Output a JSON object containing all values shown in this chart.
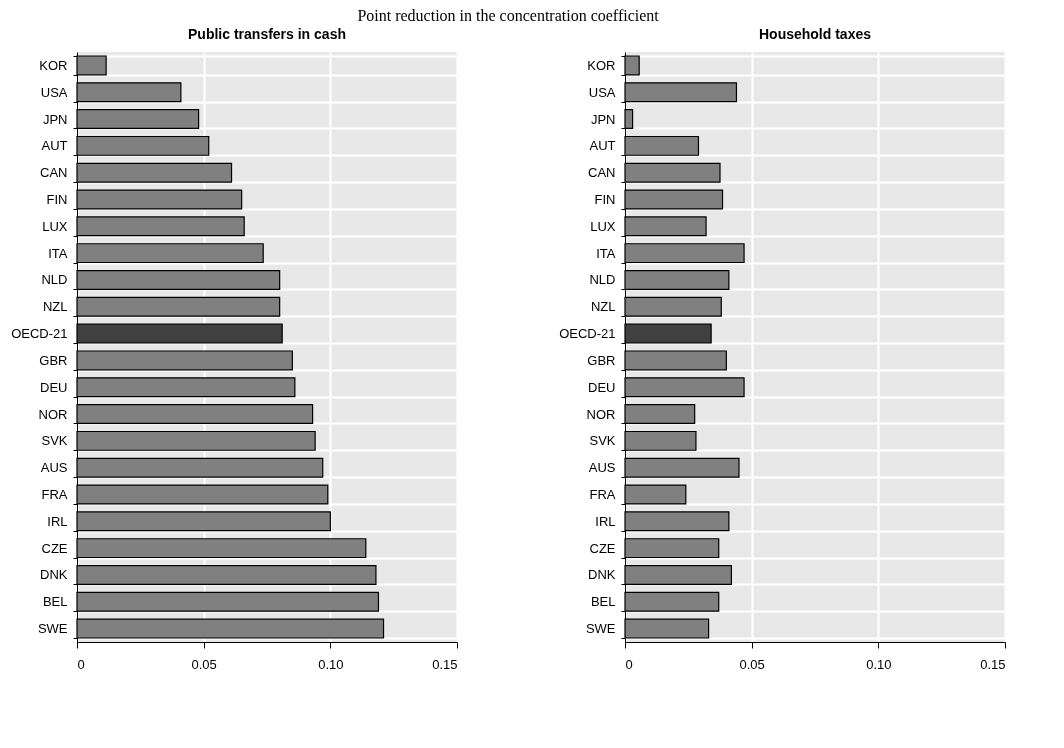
{
  "chart_data": [
    {
      "type": "bar",
      "orientation": "horizontal",
      "title": "Public transfers in cash",
      "annotations": [
        "Point reduction in the concentration coefficient"
      ],
      "categories": [
        "KOR",
        "USA",
        "JPN",
        "AUT",
        "CAN",
        "FIN",
        "LUX",
        "ITA",
        "NLD",
        "NZL",
        "OECD-21",
        "GBR",
        "DEU",
        "NOR",
        "SVK",
        "AUS",
        "FRA",
        "IRL",
        "CZE",
        "DNK",
        "BEL",
        "SWE"
      ],
      "values": [
        0.0115,
        0.041,
        0.048,
        0.052,
        0.061,
        0.065,
        0.066,
        0.0735,
        0.08,
        0.08,
        0.081,
        0.085,
        0.086,
        0.093,
        0.094,
        0.097,
        0.099,
        0.1,
        0.114,
        0.118,
        0.119,
        0.121
      ],
      "colors": [
        "#808080",
        "#808080",
        "#808080",
        "#808080",
        "#808080",
        "#808080",
        "#808080",
        "#808080",
        "#808080",
        "#808080",
        "#404040",
        "#808080",
        "#808080",
        "#808080",
        "#808080",
        "#808080",
        "#808080",
        "#808080",
        "#808080",
        "#808080",
        "#808080",
        "#808080"
      ],
      "xlim": [
        0,
        0.15
      ],
      "xticks": [
        0,
        0.05,
        {
          "value": 0.1,
          "label": "0.10"
        },
        0.15
      ],
      "grid": true
    },
    {
      "type": "bar",
      "orientation": "horizontal",
      "title": "Household taxes",
      "categories": [
        "KOR",
        "USA",
        "JPN",
        "AUT",
        "CAN",
        "FIN",
        "LUX",
        "ITA",
        "NLD",
        "NZL",
        "OECD-21",
        "GBR",
        "DEU",
        "NOR",
        "SVK",
        "AUS",
        "FRA",
        "IRL",
        "CZE",
        "DNK",
        "BEL",
        "SWE"
      ],
      "values": [
        0.0056,
        0.044,
        0.003,
        0.029,
        0.0375,
        0.0385,
        0.032,
        0.047,
        0.041,
        0.038,
        0.034,
        0.04,
        0.047,
        0.0275,
        0.028,
        0.045,
        0.024,
        0.041,
        0.037,
        0.042,
        0.037,
        0.033
      ],
      "colors": [
        "#808080",
        "#808080",
        "#808080",
        "#808080",
        "#808080",
        "#808080",
        "#808080",
        "#808080",
        "#808080",
        "#808080",
        "#404040",
        "#808080",
        "#808080",
        "#808080",
        "#808080",
        "#808080",
        "#808080",
        "#808080",
        "#808080",
        "#808080",
        "#808080",
        "#808080"
      ],
      "xlim": [
        0,
        0.15
      ],
      "xticks": [
        0,
        0.05,
        {
          "value": 0.1,
          "label": "0.10"
        },
        0.15
      ],
      "grid": true
    }
  ]
}
